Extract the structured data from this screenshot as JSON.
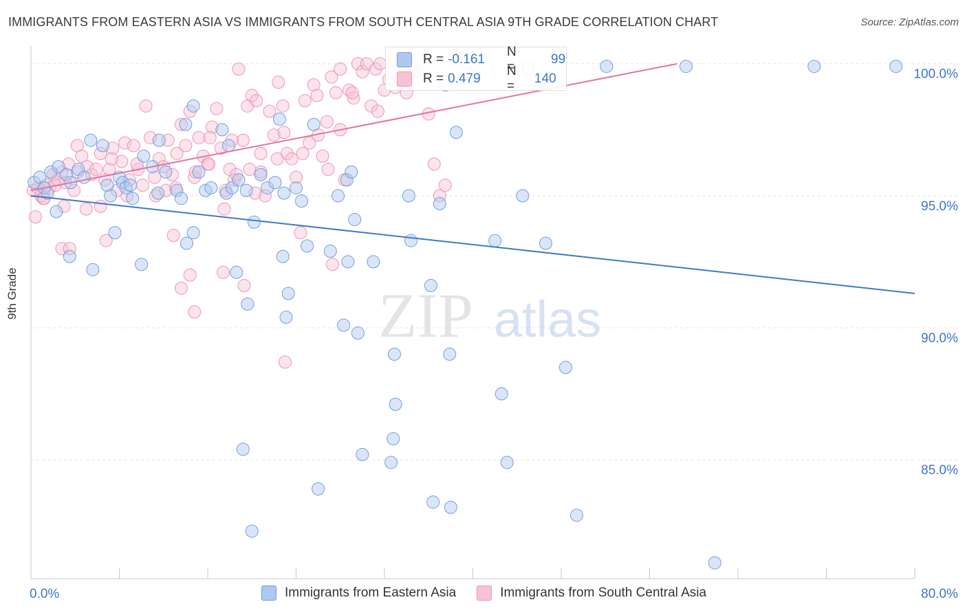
{
  "title": "IMMIGRANTS FROM EASTERN ASIA VS IMMIGRANTS FROM SOUTH CENTRAL ASIA 9TH GRADE CORRELATION CHART",
  "source": "Source: ZipAtlas.com",
  "watermark": {
    "zip": "ZIP",
    "atlas": "atlas"
  },
  "stats": {
    "rows": [
      {
        "r_label": "R =",
        "r_value": "-0.161",
        "n_label": "N =",
        "n_value": "99"
      },
      {
        "r_label": "R =",
        "r_value": "0.479",
        "n_label": "N =",
        "n_value": "140"
      }
    ]
  },
  "legend": {
    "items": [
      {
        "label": "Immigrants from Eastern Asia",
        "fill": "#aec8f0",
        "stroke": "#6f9fdc"
      },
      {
        "label": "Immigrants from South Central Asia",
        "fill": "#f7c3d4",
        "stroke": "#ee94b3"
      }
    ]
  },
  "colors": {
    "blue_line": "#3b78cd",
    "pink_line": "#e8729b",
    "tick_label": "#3a76c8",
    "grid": "#e4e4e4"
  },
  "chart_data": {
    "type": "scatter",
    "title": "IMMIGRANTS FROM EASTERN ASIA VS IMMIGRANTS FROM SOUTH CENTRAL ASIA 9TH GRADE CORRELATION CHART",
    "xlabel": "",
    "ylabel": "9th Grade",
    "xlim": [
      0,
      80
    ],
    "ylim": [
      80.5,
      100.8
    ],
    "x_tick_labels": [
      "0.0%",
      "80.0%"
    ],
    "y_ticks": [
      85,
      90,
      95,
      100
    ],
    "y_tick_labels": [
      "85.0%",
      "90.0%",
      "95.0%",
      "100.0%"
    ],
    "grid": true,
    "legend_position": "bottom",
    "series": [
      {
        "name": "Immigrants from Eastern Asia",
        "trend": {
          "x": [
            0,
            80
          ],
          "y": [
            95.0,
            91.3
          ]
        },
        "points": [
          [
            0.3,
            95.5
          ],
          [
            0.8,
            95.7
          ],
          [
            1.2,
            95.3
          ],
          [
            1.5,
            95.1
          ],
          [
            1.8,
            95.9
          ],
          [
            2.5,
            96.1
          ],
          [
            3.2,
            95.8
          ],
          [
            3.6,
            95.5
          ],
          [
            4.3,
            96.0
          ],
          [
            4.8,
            95.7
          ],
          [
            5.4,
            97.1
          ],
          [
            6.5,
            96.9
          ],
          [
            6.9,
            95.4
          ],
          [
            7.2,
            95.0
          ],
          [
            8.0,
            95.7
          ],
          [
            8.3,
            95.5
          ],
          [
            8.6,
            95.3
          ],
          [
            9.2,
            94.9
          ],
          [
            10.2,
            96.5
          ],
          [
            11.0,
            96.1
          ],
          [
            11.5,
            95.1
          ],
          [
            12.2,
            95.9
          ],
          [
            13.2,
            95.2
          ],
          [
            13.6,
            94.9
          ],
          [
            14.0,
            97.7
          ],
          [
            15.2,
            95.9
          ],
          [
            15.8,
            95.2
          ],
          [
            16.3,
            95.3
          ],
          [
            17.3,
            97.5
          ],
          [
            17.7,
            95.1
          ],
          [
            18.2,
            95.3
          ],
          [
            18.8,
            95.6
          ],
          [
            19.5,
            95.2
          ],
          [
            20.8,
            95.8
          ],
          [
            21.4,
            95.3
          ],
          [
            22.1,
            95.5
          ],
          [
            22.5,
            97.9
          ],
          [
            22.9,
            95.1
          ],
          [
            24.0,
            95.3
          ],
          [
            24.5,
            94.8
          ],
          [
            25.6,
            97.7
          ],
          [
            27.8,
            95.0
          ],
          [
            28.6,
            95.6
          ],
          [
            29.0,
            95.9
          ],
          [
            29.3,
            94.1
          ],
          [
            31.0,
            92.5
          ],
          [
            34.4,
            93.3
          ],
          [
            36.2,
            91.6
          ],
          [
            37.9,
            89.0
          ],
          [
            42.6,
            87.5
          ],
          [
            43.1,
            84.9
          ],
          [
            44.5,
            95.0
          ],
          [
            34.2,
            95.0
          ],
          [
            37.5,
            99.2
          ],
          [
            40.2,
            99.5
          ],
          [
            45.0,
            99.8
          ],
          [
            52.1,
            99.9
          ],
          [
            59.3,
            99.9
          ],
          [
            70.9,
            99.9
          ],
          [
            78.3,
            99.9
          ],
          [
            2.3,
            94.4
          ],
          [
            3.5,
            92.7
          ],
          [
            5.6,
            92.2
          ],
          [
            7.6,
            93.6
          ],
          [
            10.0,
            92.4
          ],
          [
            14.1,
            93.2
          ],
          [
            14.7,
            93.6
          ],
          [
            18.6,
            92.1
          ],
          [
            19.6,
            90.9
          ],
          [
            20.2,
            94.0
          ],
          [
            22.8,
            92.7
          ],
          [
            23.3,
            91.3
          ],
          [
            23.1,
            90.4
          ],
          [
            25.0,
            93.1
          ],
          [
            27.1,
            92.9
          ],
          [
            28.7,
            92.5
          ],
          [
            28.3,
            90.1
          ],
          [
            29.6,
            89.8
          ],
          [
            32.9,
            89.0
          ],
          [
            33.0,
            87.1
          ],
          [
            32.8,
            85.8
          ],
          [
            32.6,
            84.9
          ],
          [
            30.0,
            85.2
          ],
          [
            26.0,
            83.9
          ],
          [
            36.4,
            83.4
          ],
          [
            38.0,
            83.2
          ],
          [
            48.4,
            88.5
          ],
          [
            49.4,
            82.9
          ],
          [
            61.9,
            81.1
          ],
          [
            19.2,
            85.4
          ],
          [
            20.0,
            82.3
          ],
          [
            37.0,
            94.7
          ],
          [
            42.0,
            93.3
          ],
          [
            46.6,
            93.2
          ],
          [
            38.5,
            97.4
          ],
          [
            14.7,
            98.4
          ],
          [
            17.9,
            96.9
          ],
          [
            11.6,
            97.1
          ],
          [
            9.0,
            95.4
          ]
        ]
      },
      {
        "name": "Immigrants from South Central Asia",
        "trend": {
          "x": [
            0,
            58.5
          ],
          "y": [
            95.2,
            100.0
          ]
        },
        "points": [
          [
            0.2,
            95.2
          ],
          [
            0.6,
            95.3
          ],
          [
            0.9,
            95.0
          ],
          [
            1.1,
            94.9
          ],
          [
            1.4,
            95.4
          ],
          [
            1.7,
            95.3
          ],
          [
            2.0,
            95.8
          ],
          [
            2.4,
            95.6
          ],
          [
            2.8,
            95.9
          ],
          [
            3.1,
            95.5
          ],
          [
            3.4,
            96.2
          ],
          [
            3.9,
            95.2
          ],
          [
            4.2,
            96.9
          ],
          [
            4.6,
            96.5
          ],
          [
            5.1,
            96.1
          ],
          [
            5.5,
            95.8
          ],
          [
            5.9,
            96.0
          ],
          [
            6.3,
            96.6
          ],
          [
            6.7,
            95.6
          ],
          [
            7.1,
            96.0
          ],
          [
            7.4,
            96.8
          ],
          [
            7.8,
            95.2
          ],
          [
            8.2,
            96.3
          ],
          [
            8.5,
            97.0
          ],
          [
            8.9,
            95.6
          ],
          [
            9.3,
            96.9
          ],
          [
            9.7,
            96.0
          ],
          [
            10.1,
            95.4
          ],
          [
            10.4,
            98.4
          ],
          [
            10.8,
            97.2
          ],
          [
            11.2,
            95.7
          ],
          [
            11.6,
            96.4
          ],
          [
            12.0,
            96.1
          ],
          [
            12.4,
            97.1
          ],
          [
            12.8,
            95.8
          ],
          [
            13.2,
            96.6
          ],
          [
            13.6,
            97.7
          ],
          [
            14.0,
            96.9
          ],
          [
            14.4,
            98.2
          ],
          [
            14.8,
            95.7
          ],
          [
            15.2,
            97.2
          ],
          [
            15.6,
            96.5
          ],
          [
            16.0,
            96.2
          ],
          [
            16.4,
            97.6
          ],
          [
            16.8,
            98.3
          ],
          [
            17.2,
            96.8
          ],
          [
            17.6,
            95.2
          ],
          [
            18.0,
            96.0
          ],
          [
            18.4,
            95.6
          ],
          [
            18.8,
            99.8
          ],
          [
            19.2,
            97.1
          ],
          [
            19.6,
            98.4
          ],
          [
            20.0,
            98.8
          ],
          [
            20.4,
            98.6
          ],
          [
            20.8,
            95.9
          ],
          [
            21.2,
            95.0
          ],
          [
            21.6,
            98.2
          ],
          [
            22.0,
            97.3
          ],
          [
            22.4,
            99.3
          ],
          [
            22.8,
            98.4
          ],
          [
            23.2,
            96.6
          ],
          [
            23.6,
            96.4
          ],
          [
            24.0,
            95.7
          ],
          [
            24.4,
            93.6
          ],
          [
            24.8,
            98.6
          ],
          [
            25.2,
            97.0
          ],
          [
            25.6,
            99.2
          ],
          [
            26.0,
            97.3
          ],
          [
            26.4,
            96.5
          ],
          [
            26.8,
            97.8
          ],
          [
            27.2,
            99.5
          ],
          [
            27.6,
            98.9
          ],
          [
            28.0,
            97.5
          ],
          [
            28.4,
            95.6
          ],
          [
            28.8,
            99.0
          ],
          [
            29.2,
            98.7
          ],
          [
            29.6,
            100.0
          ],
          [
            30.0,
            99.7
          ],
          [
            30.4,
            100.0
          ],
          [
            30.8,
            98.4
          ],
          [
            31.2,
            99.8
          ],
          [
            31.6,
            100.0
          ],
          [
            32.0,
            99.0
          ],
          [
            32.4,
            99.4
          ],
          [
            32.8,
            99.7
          ],
          [
            33.2,
            100.0
          ],
          [
            33.6,
            99.6
          ],
          [
            34.0,
            98.9
          ],
          [
            34.4,
            100.0
          ],
          [
            34.8,
            99.7
          ],
          [
            36.0,
            98.1
          ],
          [
            36.5,
            96.2
          ],
          [
            37.0,
            95.0
          ],
          [
            37.5,
            95.4
          ],
          [
            38.2,
            99.3
          ],
          [
            39.4,
            100.0
          ],
          [
            40.0,
            100.0
          ],
          [
            2.8,
            93.0
          ],
          [
            3.5,
            93.0
          ],
          [
            6.8,
            93.3
          ],
          [
            12.9,
            93.5
          ],
          [
            13.6,
            91.5
          ],
          [
            14.4,
            92.0
          ],
          [
            14.8,
            90.6
          ],
          [
            17.4,
            92.1
          ],
          [
            19.3,
            91.6
          ],
          [
            23.0,
            88.7
          ],
          [
            27.3,
            92.4
          ],
          [
            3.0,
            94.6
          ],
          [
            5.0,
            94.5
          ],
          [
            6.3,
            94.6
          ],
          [
            8.7,
            95.0
          ],
          [
            11.3,
            95.0
          ],
          [
            13.1,
            95.3
          ],
          [
            16.1,
            96.2
          ],
          [
            18.6,
            95.8
          ],
          [
            20.3,
            95.1
          ],
          [
            0.4,
            94.2
          ],
          [
            1.2,
            94.9
          ],
          [
            2.2,
            95.4
          ],
          [
            4.2,
            95.9
          ],
          [
            7.3,
            96.4
          ],
          [
            9.6,
            96.2
          ],
          [
            12.2,
            95.2
          ],
          [
            14.9,
            95.9
          ],
          [
            17.5,
            94.5
          ],
          [
            19.8,
            96.0
          ],
          [
            22.3,
            96.4
          ],
          [
            24.6,
            96.6
          ],
          [
            26.9,
            96.0
          ],
          [
            29.1,
            98.9
          ],
          [
            31.4,
            98.2
          ],
          [
            33.0,
            99.1
          ],
          [
            35.1,
            99.7
          ],
          [
            16.2,
            97.2
          ],
          [
            18.2,
            97.1
          ],
          [
            20.8,
            96.6
          ],
          [
            22.9,
            97.4
          ],
          [
            25.9,
            98.8
          ],
          [
            28.0,
            99.8
          ]
        ]
      }
    ]
  }
}
